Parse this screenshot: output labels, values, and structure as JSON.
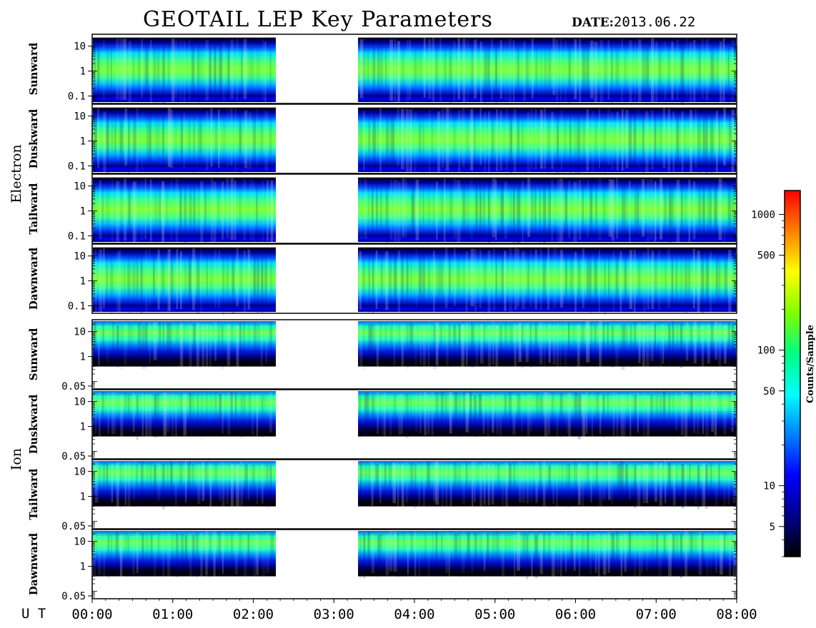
{
  "header": {
    "title": "GEOTAIL LEP Key Parameters",
    "date_label": "DATE:",
    "date_value": "2013.06.22"
  },
  "x_axis": {
    "unit_label": "U T",
    "tick_labels": [
      "00:00",
      "01:00",
      "02:00",
      "03:00",
      "04:00",
      "05:00",
      "06:00",
      "07:00",
      "08:00"
    ]
  },
  "groups": [
    {
      "label": "Electron",
      "first_panel": 0,
      "last_panel": 3
    },
    {
      "label": "Ion",
      "first_panel": 4,
      "last_panel": 7
    }
  ],
  "colorbar": {
    "label": "Counts/Sample",
    "tick_labels": [
      "1000",
      "500",
      "100",
      "50",
      "10",
      "5"
    ],
    "tick_values": [
      1000,
      500,
      100,
      50,
      10,
      5
    ],
    "range": [
      3,
      1500
    ],
    "scale": "log",
    "colors": [
      "#000000",
      "#00008b",
      "#0000ff",
      "#0080ff",
      "#00ffff",
      "#00ff80",
      "#80ff00",
      "#ffff00",
      "#ff8000",
      "#ff0000"
    ]
  },
  "chart_data": {
    "type": "heatmap",
    "title": "GEOTAIL LEP Key Parameters",
    "xlabel": "U T",
    "x_range_hours": [
      0,
      8
    ],
    "y_scale": "log",
    "data_gap_hours": [
      2.28,
      3.3
    ],
    "panels": [
      {
        "species": "Electron",
        "direction": "Sunward",
        "y_tick_labels": [
          "10",
          "1",
          "0.1"
        ],
        "y_range": [
          0.05,
          30
        ],
        "band_center": 1.8,
        "band_upper_edge": 10,
        "band_lower_edge": 0.1
      },
      {
        "species": "Electron",
        "direction": "Duskward",
        "y_tick_labels": [
          "10",
          "1",
          "0.1"
        ],
        "y_range": [
          0.05,
          30
        ],
        "band_center": 1.8,
        "band_upper_edge": 10,
        "band_lower_edge": 0.1
      },
      {
        "species": "Electron",
        "direction": "Tailward",
        "y_tick_labels": [
          "10",
          "1",
          "0.1"
        ],
        "y_range": [
          0.05,
          30
        ],
        "band_center": 1.8,
        "band_upper_edge": 10,
        "band_lower_edge": 0.1
      },
      {
        "species": "Electron",
        "direction": "Dawnward",
        "y_tick_labels": [
          "10",
          "1",
          "0.1"
        ],
        "y_range": [
          0.05,
          30
        ],
        "band_center": 1.8,
        "band_upper_edge": 10,
        "band_lower_edge": 0.1
      },
      {
        "species": "Ion",
        "direction": "Sunward",
        "y_tick_labels": [
          "10",
          "1",
          "0.05"
        ],
        "y_range": [
          0.05,
          30
        ],
        "band_center": 10,
        "band_upper_edge": 30,
        "band_lower_edge": 1
      },
      {
        "species": "Ion",
        "direction": "Duskward",
        "y_tick_labels": [
          "10",
          "1",
          "0.05"
        ],
        "y_range": [
          0.05,
          30
        ],
        "band_center": 10,
        "band_upper_edge": 30,
        "band_lower_edge": 1
      },
      {
        "species": "Ion",
        "direction": "Tailward",
        "y_tick_labels": [
          "10",
          "1",
          "0.05"
        ],
        "y_range": [
          0.05,
          30
        ],
        "band_center": 10,
        "band_upper_edge": 30,
        "band_lower_edge": 1
      },
      {
        "species": "Ion",
        "direction": "Dawnward",
        "y_tick_labels": [
          "10",
          "1",
          "0.05"
        ],
        "y_range": [
          0.05,
          30
        ],
        "band_center": 10,
        "band_upper_edge": 30,
        "band_lower_edge": 1
      }
    ]
  }
}
